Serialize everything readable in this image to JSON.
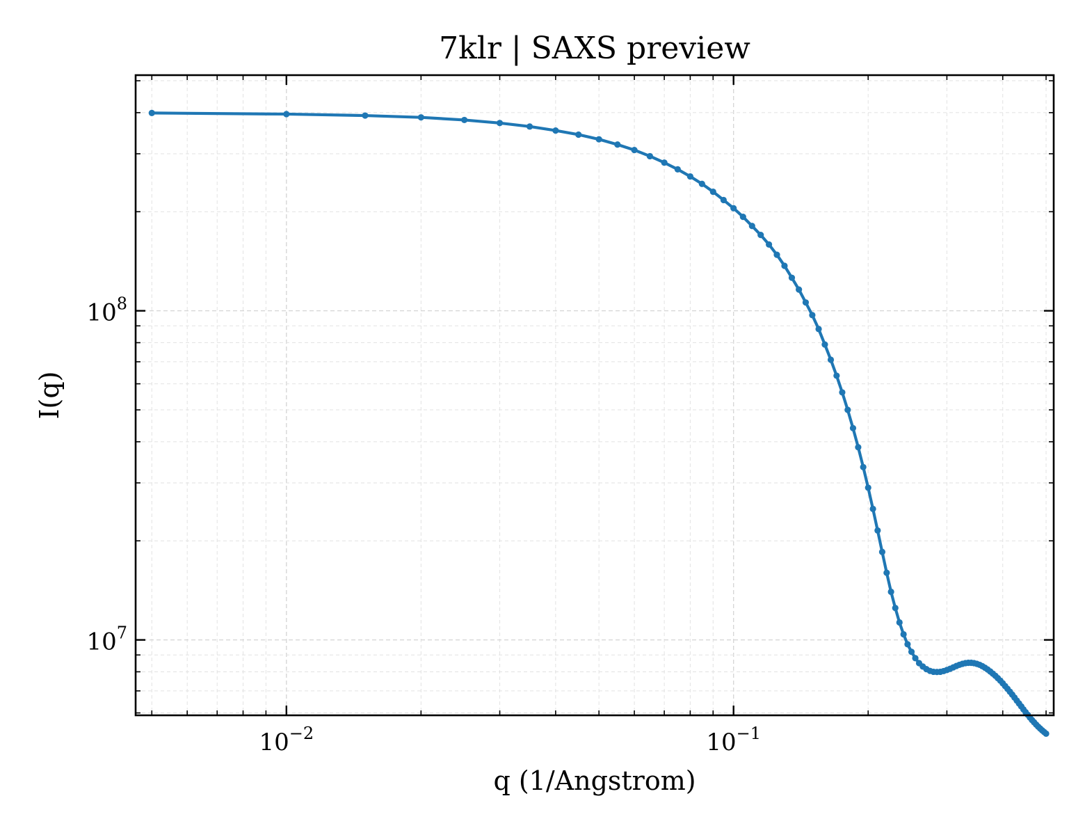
{
  "chart_data": {
    "type": "line",
    "title": "7klr | SAXS preview",
    "xlabel": "q (1/Angstrom)",
    "ylabel": "I(q)",
    "xscale": "log",
    "yscale": "log",
    "xlim": [
      0.0046,
      0.52
    ],
    "ylim": [
      5900000,
      520000000
    ],
    "grid": true,
    "line_color": "#1f77b4",
    "marker": "circle",
    "x_ticks": [
      {
        "value": 0.01,
        "base": "10",
        "exp": "−2"
      },
      {
        "value": 0.1,
        "base": "10",
        "exp": "−1"
      }
    ],
    "y_ticks": [
      {
        "value": 10000000,
        "base": "10",
        "exp": "7"
      },
      {
        "value": 100000000,
        "base": "10",
        "exp": "8"
      }
    ],
    "series": [
      {
        "x": [
          0.005,
          0.01,
          0.015,
          0.02,
          0.025,
          0.03,
          0.035,
          0.04,
          0.045,
          0.05,
          0.055,
          0.06,
          0.065,
          0.07,
          0.075,
          0.08,
          0.085,
          0.09,
          0.095,
          0.1,
          0.105,
          0.11,
          0.115,
          0.12,
          0.125,
          0.13,
          0.135,
          0.14,
          0.145,
          0.15,
          0.155,
          0.16,
          0.165,
          0.17,
          0.175,
          0.18,
          0.185,
          0.19,
          0.195,
          0.2,
          0.205,
          0.21,
          0.215,
          0.22,
          0.225,
          0.23,
          0.235,
          0.24,
          0.245,
          0.25,
          0.255,
          0.26,
          0.265,
          0.27,
          0.275,
          0.28,
          0.285,
          0.29,
          0.295,
          0.3,
          0.305,
          0.31,
          0.315,
          0.32,
          0.325,
          0.33,
          0.335,
          0.34,
          0.345,
          0.35,
          0.355,
          0.36,
          0.365,
          0.37,
          0.375,
          0.38,
          0.385,
          0.39,
          0.395,
          0.4,
          0.405,
          0.41,
          0.415,
          0.42,
          0.425,
          0.43,
          0.435,
          0.44,
          0.445,
          0.45,
          0.455,
          0.46,
          0.465,
          0.47,
          0.475,
          0.48,
          0.485,
          0.49,
          0.495,
          0.5
        ],
        "y": [
          399000000,
          396000000,
          392000000,
          387000000,
          380000000,
          372000000,
          363000000,
          353000000,
          343000000,
          332000000,
          320000000,
          308000000,
          295000000,
          282000000,
          269000000,
          256000000,
          243000000,
          230000000,
          217000000,
          205000000,
          193000000,
          181000000,
          170000000,
          159000000,
          148000000,
          137000000,
          126000000,
          116000000,
          106000000,
          97000000,
          88000000,
          79000000,
          71000000,
          63500000,
          56500000,
          50000000,
          44000000,
          38500000,
          33500000,
          29000000,
          25000000,
          21500000,
          18500000,
          16000000,
          14000000,
          12500000,
          11300000,
          10400000,
          9700000,
          9200000,
          8800000,
          8500000,
          8300000,
          8150000,
          8050000,
          8000000,
          7990000,
          8000000,
          8040000,
          8100000,
          8170000,
          8250000,
          8330000,
          8400000,
          8460000,
          8500000,
          8520000,
          8520000,
          8500000,
          8460000,
          8400000,
          8320000,
          8230000,
          8130000,
          8020000,
          7900000,
          7780000,
          7650000,
          7520000,
          7380000,
          7240000,
          7100000,
          6960000,
          6820000,
          6680000,
          6540000,
          6410000,
          6280000,
          6150000,
          6030000,
          5920000,
          5810000,
          5710000,
          5620000,
          5530000,
          5450000,
          5380000,
          5310000,
          5250000,
          5190000
        ]
      }
    ]
  }
}
